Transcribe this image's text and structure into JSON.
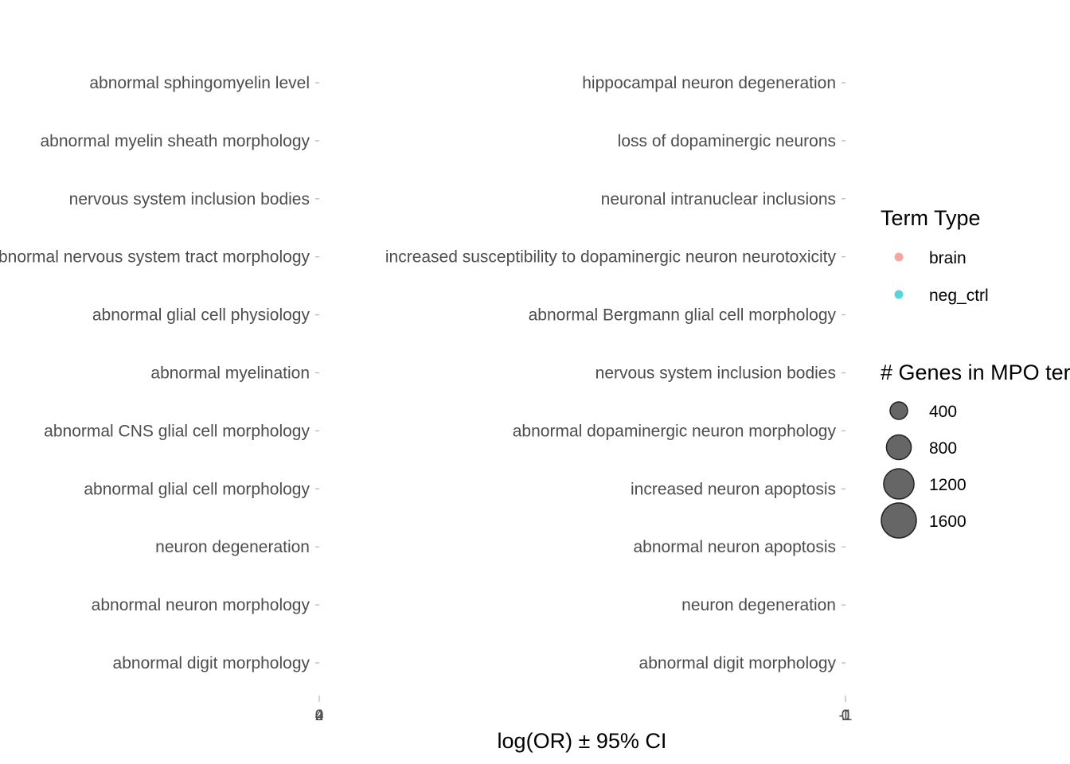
{
  "chart_data": [
    {
      "type": "scatter",
      "panel": "left",
      "categories": [
        "abnormal sphingomyelin level",
        "abnormal myelin sheath morphology",
        "nervous system inclusion bodies",
        "abnormal nervous system tract morphology",
        "abnormal glial cell physiology",
        "abnormal myelination",
        "abnormal CNS glial cell morphology",
        "abnormal glial cell morphology",
        "neuron degeneration",
        "abnormal neuron morphology",
        "abnormal digit morphology"
      ],
      "x_ticks": [
        "0",
        "2",
        "4"
      ],
      "values": []
    },
    {
      "type": "scatter",
      "panel": "right",
      "categories": [
        "hippocampal neuron degeneration",
        "loss of dopaminergic neurons",
        "neuronal intranuclear inclusions",
        "increased susceptibility to dopaminergic neuron neurotoxicity",
        "abnormal Bergmann glial cell morphology",
        "nervous system inclusion bodies",
        "abnormal dopaminergic neuron morphology",
        "increased neuron apoptosis",
        "abnormal neuron apoptosis",
        "neuron degeneration",
        "abnormal digit morphology"
      ],
      "x_ticks": [
        "-1",
        "0",
        "1"
      ],
      "values": []
    }
  ],
  "xlabel": "log(OR) ± 95% CI",
  "legend": {
    "color_title": "Term Type",
    "color_items": [
      {
        "label": "brain",
        "color": "#F8766D"
      },
      {
        "label": "neg_ctrl",
        "color": "#00BFC4"
      }
    ],
    "size_title": "# Genes in MPO term",
    "size_items": [
      "400",
      "800",
      "1200",
      "1600"
    ]
  }
}
